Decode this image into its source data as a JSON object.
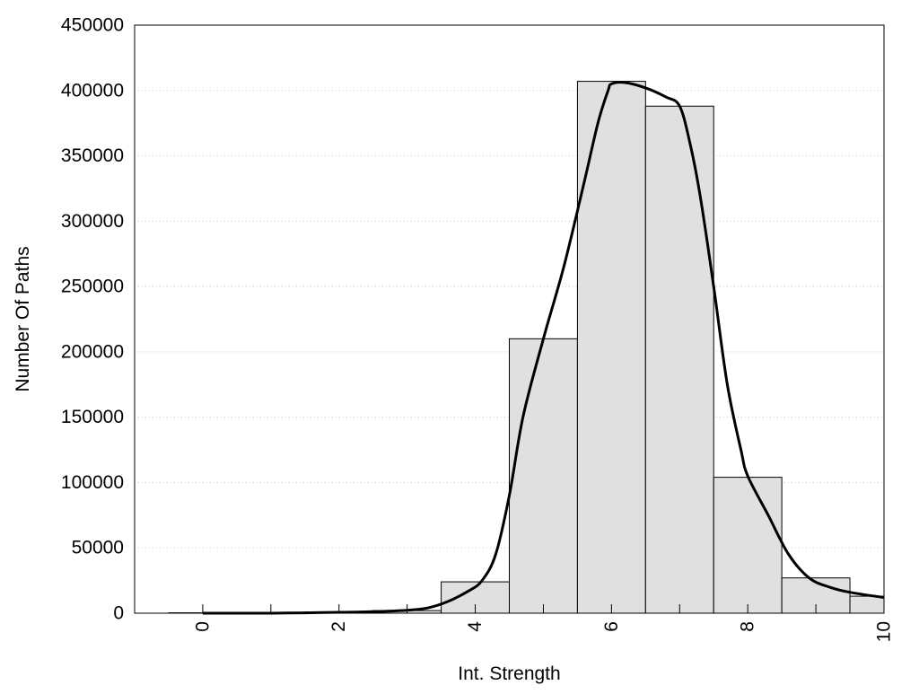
{
  "chart_data": {
    "type": "bar",
    "xlabel": "Int. Strength",
    "ylabel": "Number Of Paths",
    "xlim": [
      -1,
      10
    ],
    "ylim": [
      0,
      450000
    ],
    "x_ticks": [
      0,
      2,
      4,
      6,
      8,
      10
    ],
    "y_ticks": [
      0,
      50000,
      100000,
      150000,
      200000,
      250000,
      300000,
      350000,
      400000,
      450000
    ],
    "grid": "horizontal-dotted",
    "bar_color": "#e0e0e0",
    "bar_edge_color": "#000000",
    "bars": {
      "x": [
        0,
        1,
        2,
        3,
        4,
        5,
        6,
        7,
        8,
        9,
        10
      ],
      "values": [
        300,
        500,
        1000,
        2000,
        24000,
        210000,
        407000,
        388000,
        104000,
        27000,
        13000
      ]
    },
    "curve": {
      "x": [
        0,
        0.5,
        1,
        1.5,
        2,
        2.5,
        3,
        3.3,
        3.6,
        3.9,
        4.1,
        4.3,
        4.5,
        4.7,
        5.0,
        5.3,
        5.6,
        5.8,
        5.95,
        6.0,
        6.2,
        6.5,
        6.8,
        7.0,
        7.15,
        7.3,
        7.5,
        7.7,
        7.9,
        8.0,
        8.3,
        8.6,
        8.9,
        9.2,
        9.5,
        10.0
      ],
      "values": [
        0,
        0,
        0,
        300,
        700,
        1200,
        2300,
        4000,
        9000,
        17000,
        25000,
        45000,
        90000,
        150000,
        210000,
        265000,
        330000,
        375000,
        400000,
        405000,
        406000,
        402000,
        395000,
        388000,
        360000,
        320000,
        250000,
        175000,
        125000,
        105000,
        75000,
        45000,
        27000,
        20000,
        16000,
        12000
      ],
      "color": "#000000"
    }
  }
}
